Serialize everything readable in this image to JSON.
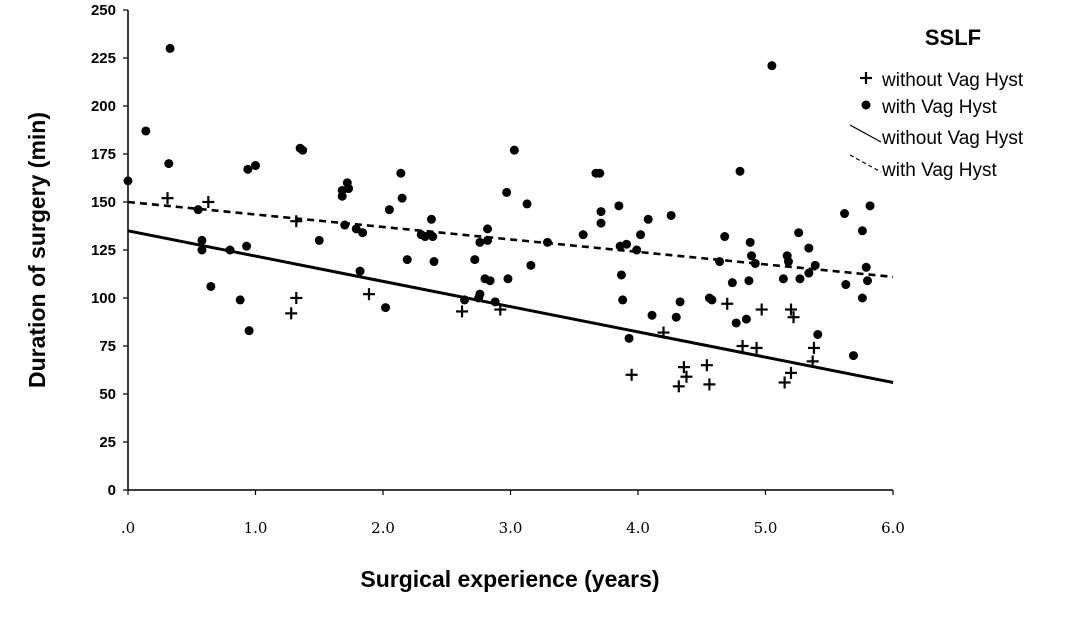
{
  "chart_data": {
    "type": "scatter",
    "xlabel": "Surgical experience (years)",
    "ylabel": "Duration of surgery (min)",
    "xlim": [
      0,
      6
    ],
    "ylim": [
      0,
      250
    ],
    "x_ticks": [
      0,
      1,
      2,
      3,
      4,
      5,
      6
    ],
    "x_tick_labels": [
      ".0",
      "1.0",
      "2.0",
      "3.0",
      "4.0",
      "5.0",
      "6.0"
    ],
    "y_ticks": [
      0,
      25,
      50,
      75,
      100,
      125,
      150,
      175,
      200,
      225,
      250
    ],
    "y_tick_labels": [
      "0",
      "25",
      "50",
      "75",
      "100",
      "125",
      "150",
      "175",
      "200",
      "225",
      "250"
    ],
    "grid": false,
    "legend": {
      "title": "SSLF",
      "placement": "top-right",
      "entries": [
        {
          "label": "without Vag Hyst",
          "marker": "plus"
        },
        {
          "label": "with Vag Hyst",
          "marker": "dot"
        },
        {
          "label": "without Vag Hyst",
          "marker": "solid-line"
        },
        {
          "label": "with Vag Hyst",
          "marker": "dashed-line"
        }
      ]
    },
    "series": [
      {
        "name": "without Vag Hyst",
        "marker": "plus",
        "points": [
          [
            0.31,
            152
          ],
          [
            0.63,
            150
          ],
          [
            1.32,
            140
          ],
          [
            1.28,
            92
          ],
          [
            1.32,
            100
          ],
          [
            1.89,
            102
          ],
          [
            2.62,
            93
          ],
          [
            2.92,
            94
          ],
          [
            3.95,
            60
          ],
          [
            4.2,
            82
          ],
          [
            4.32,
            54
          ],
          [
            4.36,
            64
          ],
          [
            4.38,
            59
          ],
          [
            4.54,
            65
          ],
          [
            4.56,
            55
          ],
          [
            4.7,
            97
          ],
          [
            4.82,
            75
          ],
          [
            4.93,
            74
          ],
          [
            4.97,
            94
          ],
          [
            5.15,
            56
          ],
          [
            5.2,
            61
          ],
          [
            5.2,
            94
          ],
          [
            5.22,
            90
          ],
          [
            5.37,
            67
          ],
          [
            5.38,
            74
          ]
        ]
      },
      {
        "name": "with Vag Hyst",
        "marker": "dot",
        "points": [
          [
            0.0,
            161
          ],
          [
            0.14,
            187
          ],
          [
            0.33,
            230
          ],
          [
            0.32,
            170
          ],
          [
            0.55,
            146
          ],
          [
            0.58,
            130
          ],
          [
            0.58,
            125
          ],
          [
            0.65,
            106
          ],
          [
            0.8,
            125
          ],
          [
            0.88,
            99
          ],
          [
            0.93,
            127
          ],
          [
            0.94,
            167
          ],
          [
            0.95,
            83
          ],
          [
            1.0,
            169
          ],
          [
            1.35,
            178
          ],
          [
            1.37,
            177
          ],
          [
            1.5,
            130
          ],
          [
            1.68,
            153
          ],
          [
            1.68,
            156
          ],
          [
            1.72,
            160
          ],
          [
            1.73,
            157
          ],
          [
            1.7,
            138
          ],
          [
            1.79,
            136
          ],
          [
            1.82,
            114
          ],
          [
            1.84,
            134
          ],
          [
            2.02,
            95
          ],
          [
            2.05,
            146
          ],
          [
            2.14,
            165
          ],
          [
            2.15,
            152
          ],
          [
            2.19,
            120
          ],
          [
            2.3,
            133
          ],
          [
            2.33,
            132
          ],
          [
            2.37,
            133
          ],
          [
            2.38,
            141
          ],
          [
            2.39,
            132
          ],
          [
            2.4,
            119
          ],
          [
            2.64,
            99
          ],
          [
            2.72,
            120
          ],
          [
            2.75,
            100
          ],
          [
            2.76,
            102
          ],
          [
            2.76,
            129
          ],
          [
            2.8,
            110
          ],
          [
            2.82,
            136
          ],
          [
            2.82,
            130
          ],
          [
            2.84,
            109
          ],
          [
            2.88,
            98
          ],
          [
            2.97,
            155
          ],
          [
            2.98,
            110
          ],
          [
            3.03,
            177
          ],
          [
            3.13,
            149
          ],
          [
            3.16,
            117
          ],
          [
            3.29,
            129
          ],
          [
            3.57,
            133
          ],
          [
            3.67,
            165
          ],
          [
            3.7,
            165
          ],
          [
            3.71,
            139
          ],
          [
            3.71,
            145
          ],
          [
            3.85,
            148
          ],
          [
            3.86,
            127
          ],
          [
            3.87,
            112
          ],
          [
            3.88,
            99
          ],
          [
            3.91,
            128
          ],
          [
            3.93,
            79
          ],
          [
            3.99,
            125
          ],
          [
            4.02,
            133
          ],
          [
            4.08,
            141
          ],
          [
            4.11,
            91
          ],
          [
            4.26,
            143
          ],
          [
            4.3,
            90
          ],
          [
            4.33,
            98
          ],
          [
            4.56,
            100
          ],
          [
            4.58,
            99
          ],
          [
            4.64,
            119
          ],
          [
            4.68,
            132
          ],
          [
            4.74,
            108
          ],
          [
            4.77,
            87
          ],
          [
            4.8,
            166
          ],
          [
            4.85,
            89
          ],
          [
            4.87,
            109
          ],
          [
            4.88,
            129
          ],
          [
            4.89,
            122
          ],
          [
            4.92,
            118
          ],
          [
            5.05,
            221
          ],
          [
            5.14,
            110
          ],
          [
            5.17,
            122
          ],
          [
            5.18,
            119
          ],
          [
            5.26,
            134
          ],
          [
            5.27,
            110
          ],
          [
            5.34,
            126
          ],
          [
            5.34,
            113
          ],
          [
            5.39,
            117
          ],
          [
            5.41,
            81
          ],
          [
            5.62,
            144
          ],
          [
            5.63,
            107
          ],
          [
            5.69,
            70
          ],
          [
            5.76,
            135
          ],
          [
            5.76,
            100
          ],
          [
            5.79,
            116
          ],
          [
            5.8,
            109
          ],
          [
            5.82,
            148
          ]
        ]
      }
    ],
    "fit_lines": [
      {
        "name": "without Vag Hyst",
        "style": "solid",
        "x": [
          0,
          6
        ],
        "y": [
          135,
          56
        ]
      },
      {
        "name": "with Vag Hyst",
        "style": "dashed",
        "x": [
          0,
          6
        ],
        "y": [
          150,
          111
        ]
      }
    ]
  }
}
